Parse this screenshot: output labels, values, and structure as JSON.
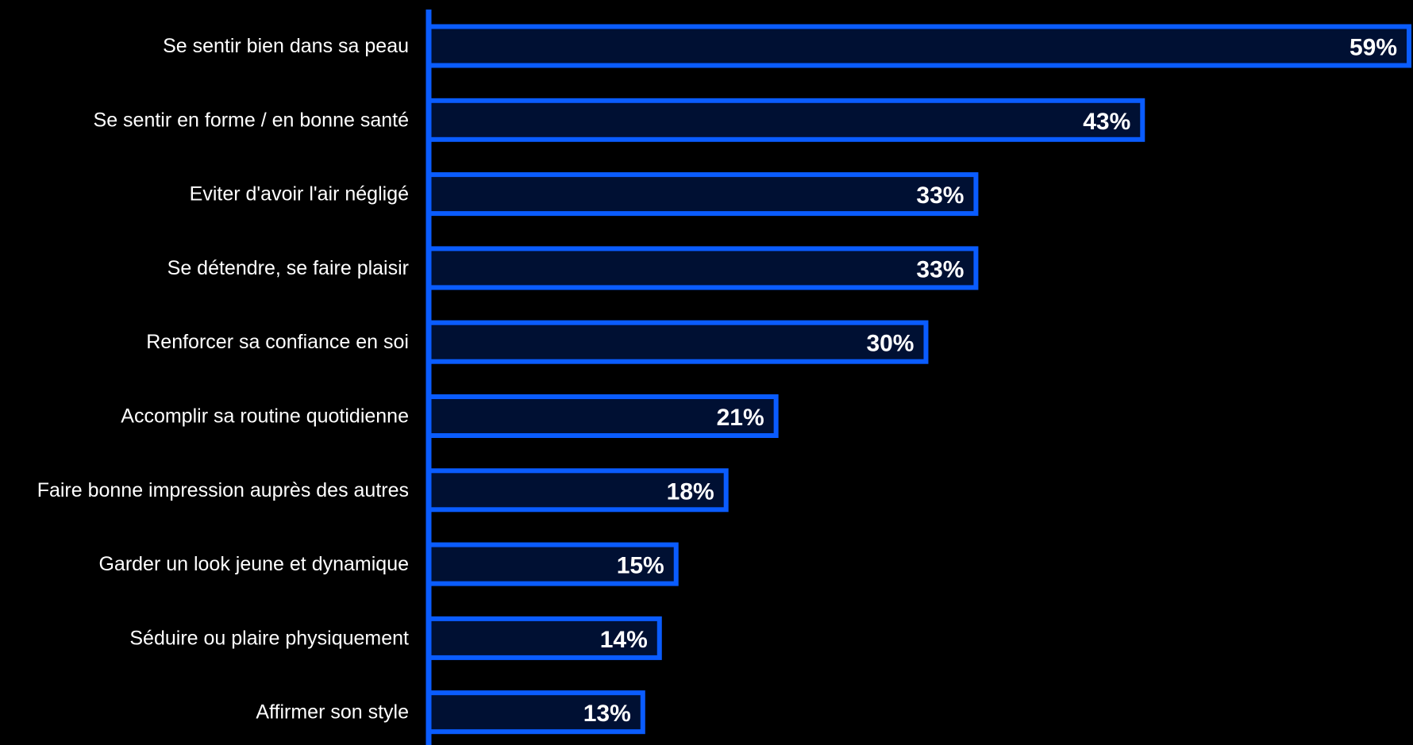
{
  "chart_data": {
    "type": "bar",
    "orientation": "horizontal",
    "categories": [
      "Se sentir bien dans sa peau",
      "Se sentir en forme / en bonne santé",
      "Eviter d'avoir l'air négligé",
      "Se détendre, se faire plaisir",
      "Renforcer sa confiance en soi",
      "Accomplir sa routine quotidienne",
      "Faire bonne impression auprès des autres",
      "Garder un look jeune et dynamique",
      "Séduire ou plaire physiquement",
      "Affirmer son style"
    ],
    "values": [
      59,
      43,
      33,
      33,
      30,
      21,
      18,
      15,
      14,
      13
    ],
    "value_labels": [
      "59%",
      "43%",
      "33%",
      "33%",
      "30%",
      "21%",
      "18%",
      "15%",
      "14%",
      "13%"
    ],
    "xlim": [
      0,
      59
    ],
    "grid": false,
    "colors": {
      "bar_fill": "#001033",
      "bar_stroke": "#0a5cff",
      "axis": "#0a5cff",
      "text": "#ffffff",
      "background": "#000000"
    }
  }
}
